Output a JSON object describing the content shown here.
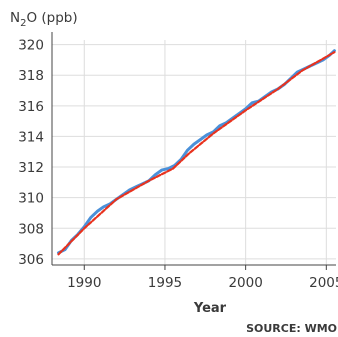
{
  "chart_data": {
    "type": "line",
    "ylabel": {
      "main": "N",
      "subscript": "2",
      "rest": "O (ppb)"
    },
    "xlabel": "Year",
    "source": "SOURCE: WMO",
    "xlim": [
      1988,
      2005.6
    ],
    "ylim": [
      305.6,
      320.3
    ],
    "x_ticks": [
      1990,
      1995,
      2000,
      2005
    ],
    "y_ticks": [
      306,
      308,
      310,
      312,
      314,
      316,
      318,
      320
    ],
    "grid": true,
    "colors": {
      "observed": "#4a90d9",
      "trend": "#e8321e",
      "grid": "#dddddd",
      "axis": "#444444"
    },
    "series": [
      {
        "key": "observed",
        "x": [
          1988.4,
          1988.8,
          1989.2,
          1989.6,
          1990.0,
          1990.4,
          1990.8,
          1991.2,
          1991.6,
          1992.0,
          1992.4,
          1992.8,
          1993.2,
          1993.6,
          1994.0,
          1994.4,
          1994.8,
          1995.2,
          1995.6,
          1996.0,
          1996.4,
          1996.8,
          1997.2,
          1997.6,
          1998.0,
          1998.4,
          1998.8,
          1999.2,
          1999.6,
          2000.0,
          2000.4,
          2000.8,
          2001.2,
          2001.6,
          2002.0,
          2002.4,
          2002.8,
          2003.2,
          2003.6,
          2004.0,
          2004.4,
          2004.8,
          2005.2,
          2005.5
        ],
        "y": [
          306.4,
          306.6,
          307.2,
          307.6,
          308.1,
          308.7,
          309.1,
          309.4,
          309.6,
          309.9,
          310.2,
          310.5,
          310.7,
          310.9,
          311.1,
          311.5,
          311.8,
          311.9,
          312.1,
          312.5,
          313.1,
          313.5,
          313.8,
          314.1,
          314.3,
          314.7,
          314.9,
          315.2,
          315.5,
          315.8,
          316.2,
          316.3,
          316.6,
          316.9,
          317.1,
          317.4,
          317.8,
          318.2,
          318.4,
          318.6,
          318.8,
          319.0,
          319.3,
          319.6
        ]
      },
      {
        "key": "trend",
        "x": [
          1988.4,
          1990.0,
          1992.0,
          1994.0,
          1995.5,
          1996.5,
          1998.0,
          2000.0,
          2002.0,
          2003.5,
          2005.5
        ],
        "y": [
          306.3,
          308.0,
          309.9,
          311.1,
          311.9,
          312.9,
          314.2,
          315.7,
          317.1,
          318.3,
          319.5
        ]
      }
    ]
  }
}
